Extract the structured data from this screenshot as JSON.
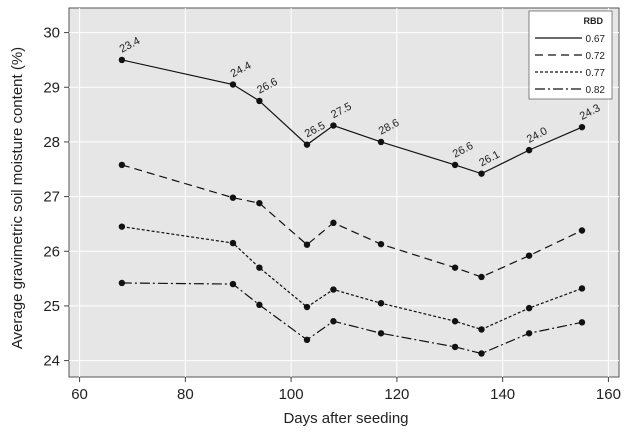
{
  "chart_data": {
    "type": "line",
    "xlabel": "Days after seeding",
    "ylabel": "Average gravimetric soil moisture content (%)",
    "xlim": [
      58,
      162
    ],
    "ylim": [
      23.7,
      30.45
    ],
    "x_ticks": [
      60,
      80,
      100,
      120,
      140,
      160
    ],
    "y_ticks": [
      24,
      25,
      26,
      27,
      28,
      29,
      30
    ],
    "grid": true,
    "legend": {
      "title": "RBD",
      "placement": "top-right"
    },
    "x": [
      68,
      89,
      94,
      103,
      108,
      117,
      131,
      136,
      145,
      155
    ],
    "series": [
      {
        "name": "0.67",
        "dash": "solid",
        "values": [
          29.5,
          29.05,
          28.75,
          27.95,
          28.3,
          28.0,
          27.58,
          27.42,
          27.85,
          28.27
        ]
      },
      {
        "name": "0.72",
        "dash": "dashed",
        "values": [
          27.58,
          26.98,
          26.88,
          26.12,
          26.52,
          26.13,
          25.7,
          25.53,
          25.92,
          26.38
        ]
      },
      {
        "name": "0.77",
        "dash": "dotted",
        "values": [
          26.45,
          26.15,
          25.7,
          24.98,
          25.3,
          25.05,
          24.72,
          24.57,
          24.96,
          25.32
        ]
      },
      {
        "name": "0.82",
        "dash": "dashdot",
        "values": [
          25.42,
          25.4,
          25.02,
          24.38,
          24.72,
          24.5,
          24.25,
          24.13,
          24.5,
          24.7
        ]
      }
    ],
    "annotations": [
      "23.4",
      "24.4",
      "26.6",
      "26.5",
      "27.5",
      "28.6",
      "26.6",
      "26.1",
      "24.0",
      "24.3"
    ]
  }
}
